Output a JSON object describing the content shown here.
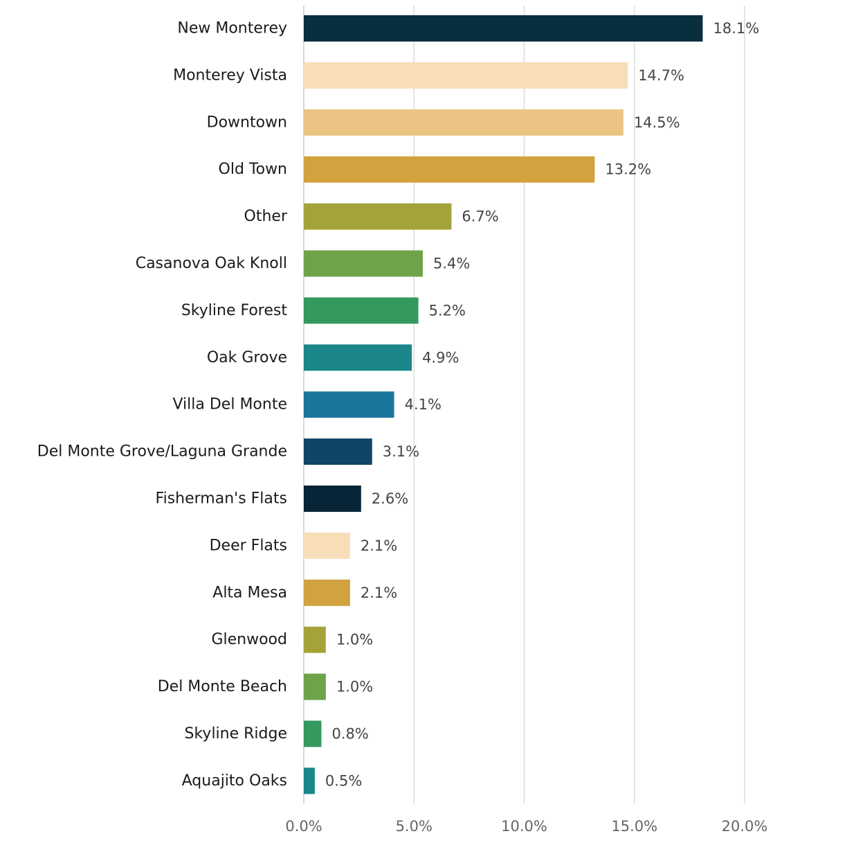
{
  "chart_data": {
    "type": "bar",
    "orientation": "horizontal",
    "title": "",
    "xlabel": "",
    "ylabel": "",
    "xlim": [
      0,
      20
    ],
    "grid": "vertical",
    "legend": "none",
    "x_ticks": [
      "0.0%",
      "5.0%",
      "10.0%",
      "15.0%",
      "20.0%"
    ],
    "categories": [
      "New Monterey",
      "Monterey Vista",
      "Downtown",
      "Old Town",
      "Other",
      "Casanova Oak Knoll",
      "Skyline Forest",
      "Oak Grove",
      "Villa Del Monte",
      "Del Monte Grove/Laguna Grande",
      "Fisherman's Flats",
      "Deer Flats",
      "Alta Mesa",
      "Glenwood",
      "Del Monte Beach",
      "Skyline Ridge",
      "Aquajito Oaks"
    ],
    "values": [
      18.1,
      14.7,
      14.5,
      13.2,
      6.7,
      5.4,
      5.2,
      4.9,
      4.1,
      3.1,
      2.6,
      2.1,
      2.1,
      1.0,
      1.0,
      0.8,
      0.5
    ],
    "value_labels": [
      "18.1%",
      "14.7%",
      "14.5%",
      "13.2%",
      "6.7%",
      "5.4%",
      "5.2%",
      "4.9%",
      "4.1%",
      "3.1%",
      "2.6%",
      "2.1%",
      "2.1%",
      "1.0%",
      "1.0%",
      "0.8%",
      "0.5%"
    ],
    "colors": [
      "#072f3e",
      "#f8deb8",
      "#ebc382",
      "#d1a23e",
      "#a4a33a",
      "#6ea34a",
      "#35995f",
      "#1b878a",
      "#1b769c",
      "#114565",
      "#072536",
      "#f8deb8",
      "#d1a23e",
      "#a4a33a",
      "#6ea34a",
      "#35995f",
      "#1b878a"
    ]
  }
}
